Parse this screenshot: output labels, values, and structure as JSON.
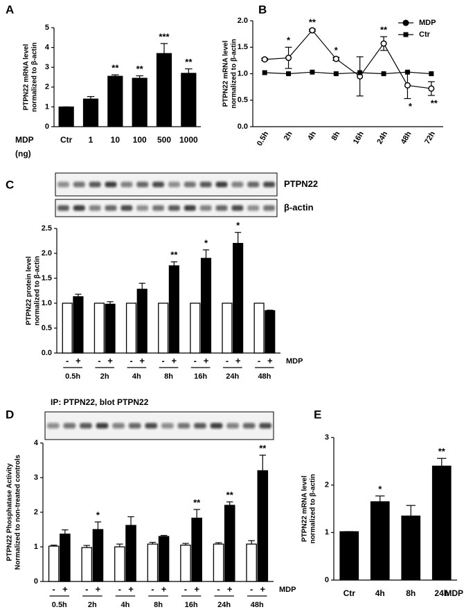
{
  "chart_data": [
    {
      "panel": "A",
      "type": "bar",
      "ylabel": [
        "PTPN22 mRNA level",
        "normalized to β-actin"
      ],
      "xlabel": [
        "MDP",
        "(ng)"
      ],
      "categories": [
        "Ctr",
        "1",
        "10",
        "100",
        "500",
        "1000"
      ],
      "values": [
        1,
        1.4,
        2.55,
        2.45,
        3.7,
        2.7
      ],
      "errors": [
        0,
        0.12,
        0.07,
        0.12,
        0.5,
        0.22
      ],
      "significance": [
        null,
        null,
        "**",
        "**",
        "***",
        "**"
      ],
      "color": "#000000",
      "ylim": [
        0,
        5
      ],
      "yticks": [
        0,
        1,
        2,
        3,
        4,
        5
      ]
    },
    {
      "panel": "B",
      "type": "line",
      "ylabel": [
        "PTPN22 mRNA level",
        "normalized to β-actin"
      ],
      "categories": [
        "0.5h",
        "2h",
        "4h",
        "8h",
        "16h",
        "24h",
        "48h",
        "72h"
      ],
      "series": [
        {
          "name": "MDP",
          "color": "#000000",
          "marker": "circle",
          "values": [
            1.27,
            1.3,
            1.82,
            1.28,
            0.95,
            1.57,
            0.78,
            0.72
          ],
          "errors": [
            0.02,
            0.2,
            0.02,
            0.03,
            0.37,
            0.13,
            0.25,
            0.13
          ],
          "significance": [
            null,
            "*",
            "**",
            "*",
            null,
            "**",
            "*",
            "**"
          ]
        },
        {
          "name": "Ctr",
          "color": "#000000",
          "marker": "square",
          "values": [
            1.02,
            1.0,
            1.03,
            1.0,
            1.02,
            1.0,
            1.03,
            1.0
          ]
        }
      ],
      "ylim": [
        0,
        2
      ],
      "yticks": [
        {
          "value": 0,
          "label": "0.0"
        },
        {
          "value": 0.5,
          "label": "0.5"
        },
        {
          "value": 1,
          "label": "1.0"
        },
        {
          "value": 1.5,
          "label": "1.5"
        },
        {
          "value": 2,
          "label": "2.0"
        }
      ],
      "legend": "upper right"
    },
    {
      "panel": "C",
      "type": "bar",
      "blot_labels": [
        "PTPN22",
        "β-actin"
      ],
      "ylabel": [
        "PTPN22 protein level",
        "normalized to β-actin"
      ],
      "xlabel": "MDP",
      "categories": [
        "0.5h",
        "2h",
        "4h",
        "8h",
        "16h",
        "24h",
        "48h"
      ],
      "series": [
        {
          "name": "-",
          "color": "#ffffff",
          "values": [
            1,
            1,
            1,
            1,
            1,
            1,
            1
          ]
        },
        {
          "name": "+",
          "color": "#000000",
          "values": [
            1.13,
            0.98,
            1.28,
            1.75,
            1.9,
            2.2,
            0.85
          ],
          "errors": [
            0.05,
            0.05,
            0.12,
            0.08,
            0.17,
            0.22,
            0.01
          ],
          "significance": [
            null,
            null,
            null,
            "**",
            "*",
            "*",
            null
          ]
        }
      ],
      "ylim": [
        0,
        2.5
      ],
      "yticks": [
        {
          "value": 0,
          "label": "0.0"
        },
        {
          "value": 0.5,
          "label": "0.5"
        },
        {
          "value": 1,
          "label": "1.0"
        },
        {
          "value": 1.5,
          "label": "1.5"
        },
        {
          "value": 2,
          "label": "2.0"
        },
        {
          "value": 2.5,
          "label": "2.5"
        }
      ]
    },
    {
      "panel": "D",
      "type": "bar",
      "blot_title": "IP: PTPN22, blot PTPN22",
      "ylabel": [
        "PTPN22 Phosphatase Activity",
        "Normalized to non-treated controls"
      ],
      "xlabel": "MDP",
      "categories": [
        "0.5h",
        "2h",
        "4h",
        "8h",
        "16h",
        "24h",
        "48h"
      ],
      "series": [
        {
          "name": "-",
          "color": "#ffffff",
          "values": [
            1.02,
            0.98,
            1.0,
            1.08,
            1.05,
            1.08,
            1.08
          ],
          "errors": [
            0.03,
            0.06,
            0.08,
            0.05,
            0.05,
            0.04,
            0.1
          ]
        },
        {
          "name": "+",
          "color": "#000000",
          "values": [
            1.37,
            1.5,
            1.62,
            1.3,
            1.83,
            2.2,
            3.2
          ],
          "errors": [
            0.12,
            0.22,
            0.25,
            0.03,
            0.25,
            0.1,
            0.45
          ],
          "significance": [
            null,
            "*",
            null,
            null,
            "**",
            "**",
            "**"
          ]
        }
      ],
      "ylim": [
        0,
        4
      ],
      "yticks": [
        0,
        1,
        2,
        3,
        4
      ]
    },
    {
      "panel": "E",
      "type": "bar",
      "ylabel": [
        "PTPN22 mRNA level",
        "normalized to β-actin"
      ],
      "xlabel": "MDP",
      "categories": [
        "Ctr",
        "4h",
        "8h",
        "24h"
      ],
      "values": [
        1.02,
        1.65,
        1.35,
        2.4
      ],
      "errors": [
        0,
        0.12,
        0.22,
        0.16
      ],
      "significance": [
        null,
        "*",
        null,
        "**"
      ],
      "color": "#000000",
      "ylim": [
        0,
        3
      ],
      "yticks": [
        0,
        1,
        2,
        3
      ]
    }
  ]
}
